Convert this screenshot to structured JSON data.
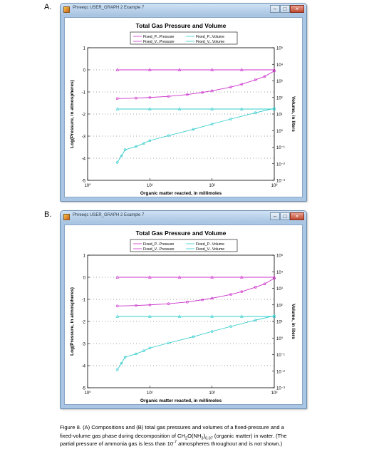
{
  "panels": [
    {
      "label": "A.",
      "window": {
        "title": "Phreeqc USER_GRAPH 2 Example 7",
        "min_glyph": "–",
        "max_glyph": "□",
        "close_glyph": "×"
      },
      "chart_data": {
        "type": "line",
        "title": "Total Gas Pressure and Volume",
        "xlabel": "Organic matter reacted, in millimoles",
        "ylabel": "Log(Pressure, in atmospheres)",
        "y2label": "Volume, in liters",
        "x_scale": "log",
        "xlim": [
          1,
          1000
        ],
        "ylim": [
          -5,
          1
        ],
        "y2_scale": "log",
        "y2lim": [
          0.001,
          100000
        ],
        "x_ticks": [
          "10⁰",
          "10¹",
          "10²",
          "10³"
        ],
        "y_ticks": [
          "1",
          "0",
          "-1",
          "-2",
          "-3",
          "-4",
          "-5"
        ],
        "y2_ticks": [
          "10⁵",
          "10⁴",
          "10³",
          "10²",
          "10¹",
          "10⁰",
          "10⁻¹",
          "10⁻²",
          "10⁻³"
        ],
        "grid": "dotted",
        "legend_placement": "top",
        "series": [
          {
            "name": "Fixed_P...Pressure",
            "axis": "left",
            "color": "#cc33cc",
            "marker": "triangle",
            "x": [
              3,
              10,
              30,
              100,
              300,
              1000
            ],
            "y": [
              0,
              0,
              0,
              0,
              0,
              0
            ]
          },
          {
            "name": "Fixed_V...Pressure",
            "axis": "left",
            "color": "#cc33cc",
            "marker": "circle",
            "x": [
              3,
              6,
              10,
              20,
              40,
              70,
              100,
              200,
              300,
              500,
              700,
              1000
            ],
            "y": [
              -1.3,
              -1.28,
              -1.25,
              -1.2,
              -1.12,
              -1.02,
              -0.95,
              -0.78,
              -0.65,
              -0.45,
              -0.3,
              -0.05
            ]
          },
          {
            "name": "Fixed_P...Volume",
            "axis": "right",
            "color": "#33cccc",
            "marker": "triangle",
            "x": [
              3,
              10,
              30,
              100,
              300,
              1000
            ],
            "y": [
              20,
              20,
              20,
              20,
              20,
              20
            ]
          },
          {
            "name": "Fixed_V...Volume",
            "axis": "right",
            "color": "#33cccc",
            "marker": "circle",
            "x": [
              3,
              3.5,
              4,
              6,
              8,
              10,
              20,
              50,
              100,
              200,
              500,
              1000
            ],
            "y": [
              0.012,
              0.03,
              0.07,
              0.11,
              0.17,
              0.25,
              0.5,
              1.2,
              2.5,
              5,
              12,
              22
            ]
          }
        ]
      }
    },
    {
      "label": "B.",
      "window": {
        "title": "Phreeqc USER_GRAPH 2 Example 7",
        "min_glyph": "–",
        "max_glyph": "□",
        "close_glyph": "×"
      },
      "chart_data": {
        "type": "line",
        "title": "Total Gas Pressure and Volume",
        "xlabel": "Organic matter reacted, in millimoles",
        "ylabel": "Log(Pressure, in atmospheres)",
        "y2label": "Volume, in liters",
        "x_scale": "log",
        "xlim": [
          1,
          1000
        ],
        "ylim": [
          -5,
          1
        ],
        "y2_scale": "log",
        "y2lim": [
          0.001,
          100000
        ],
        "x_ticks": [
          "10⁰",
          "10¹",
          "10²",
          "10³"
        ],
        "y_ticks": [
          "1",
          "0",
          "-1",
          "-2",
          "-3",
          "-4",
          "-5"
        ],
        "y2_ticks": [
          "10⁵",
          "10⁴",
          "10³",
          "10²",
          "10¹",
          "10⁰",
          "10⁻¹",
          "10⁻²",
          "10⁻³"
        ],
        "grid": "dotted",
        "legend_placement": "top",
        "series": [
          {
            "name": "Fixed_P...Pressure",
            "axis": "left",
            "color": "#cc33cc",
            "marker": "triangle",
            "x": [
              3,
              10,
              30,
              100,
              300,
              1000
            ],
            "y": [
              0,
              0,
              0,
              0,
              0,
              0
            ]
          },
          {
            "name": "Fixed_V...Pressure",
            "axis": "left",
            "color": "#cc33cc",
            "marker": "circle",
            "x": [
              3,
              6,
              10,
              20,
              40,
              70,
              100,
              200,
              300,
              500,
              700,
              1000
            ],
            "y": [
              -1.3,
              -1.28,
              -1.25,
              -1.2,
              -1.12,
              -1.02,
              -0.95,
              -0.78,
              -0.65,
              -0.45,
              -0.3,
              -0.05
            ]
          },
          {
            "name": "Fixed_P...Volume",
            "axis": "right",
            "color": "#33cccc",
            "marker": "triangle",
            "x": [
              3,
              10,
              30,
              100,
              300,
              1000
            ],
            "y": [
              20,
              20,
              20,
              20,
              20,
              20
            ]
          },
          {
            "name": "Fixed_V...Volume",
            "axis": "right",
            "color": "#33cccc",
            "marker": "circle",
            "x": [
              3,
              3.5,
              4,
              6,
              8,
              10,
              20,
              50,
              100,
              200,
              500,
              1000
            ],
            "y": [
              0.012,
              0.03,
              0.07,
              0.11,
              0.17,
              0.25,
              0.5,
              1.2,
              2.5,
              5,
              12,
              22
            ]
          }
        ]
      }
    }
  ],
  "caption": {
    "part1": "Figure 8. (A) Compositions and (B) total gas pressures and volumes of a fixed-pressure and a fixed-volume gas phase during decomposition of CH",
    "sub1": "2",
    "part2": "O(NH",
    "sub2": "3",
    "part3": ")",
    "sub3": "0.07",
    "part4": " (organic matter) in water. (The partial pressure of ammonia gas is less than 10",
    "sup1": "-7",
    "part5": " atmospheres throughout and is not shown.)"
  }
}
